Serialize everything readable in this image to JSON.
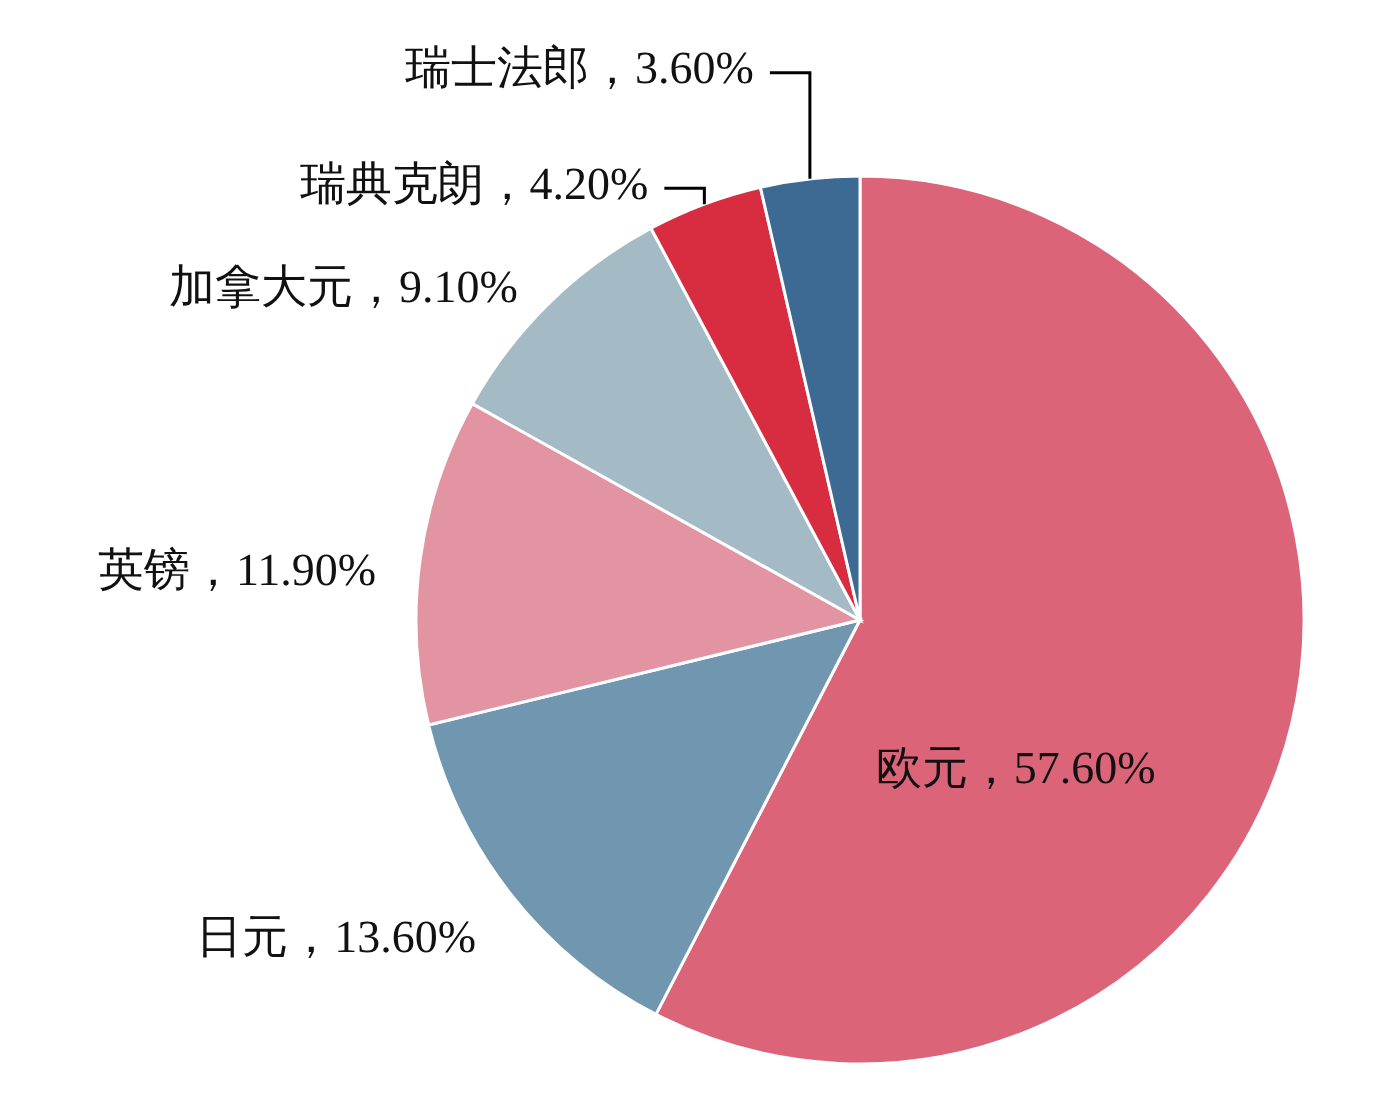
{
  "chart_data": {
    "type": "pie",
    "categories": [
      "欧元",
      "日元",
      "英镑",
      "加拿大元",
      "瑞典克朗",
      "瑞士法郎"
    ],
    "values": [
      57.6,
      13.6,
      11.9,
      9.1,
      4.2,
      3.6
    ],
    "value_labels": [
      "57.60%",
      "13.60%",
      "11.90%",
      "9.10%",
      "4.20%",
      "3.60%"
    ],
    "colors": [
      "#dc6478",
      "#7096b0",
      "#e394a2",
      "#a4bac5",
      "#d82c40",
      "#3d6a92"
    ]
  }
}
